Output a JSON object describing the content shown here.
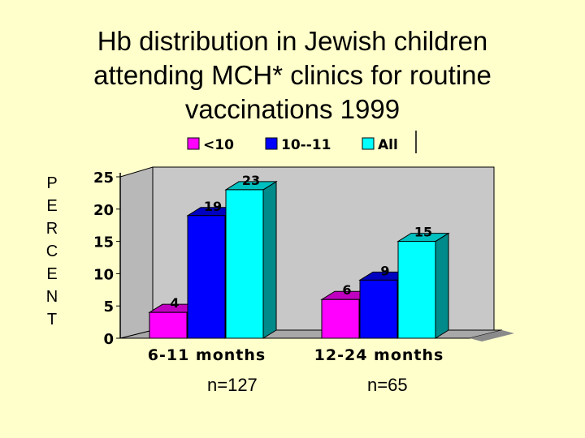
{
  "title_lines": [
    "Hb distribution in Jewish children",
    "attending MCH* clinics for routine",
    "vaccinations 1999"
  ],
  "y_axis_label": "PERCENT",
  "sample_sizes": [
    "n=127",
    "n=65"
  ],
  "colors": {
    "front": [
      "#ff00ff",
      "#0000ff",
      "#00ffff"
    ],
    "side": [
      "#8a008a",
      "#00008a",
      "#008a8a"
    ],
    "top": [
      "#c000c0",
      "#0000c0",
      "#00c0c0"
    ]
  },
  "chart_data": {
    "type": "bar",
    "title": "Hb distribution in Jewish children attending MCH* clinics for routine vaccinations 1999",
    "xlabel": "",
    "ylabel": "PERCENT",
    "categories": [
      "6-11 months",
      "12-24 months"
    ],
    "series": [
      {
        "name": "<10",
        "values": [
          4,
          6
        ]
      },
      {
        "name": "10--11",
        "values": [
          19,
          9
        ]
      },
      {
        "name": "All",
        "values": [
          23,
          15
        ]
      }
    ],
    "yticks": [
      0,
      5,
      10,
      15,
      20,
      25
    ],
    "ylim": [
      0,
      25
    ],
    "legend": "top"
  }
}
